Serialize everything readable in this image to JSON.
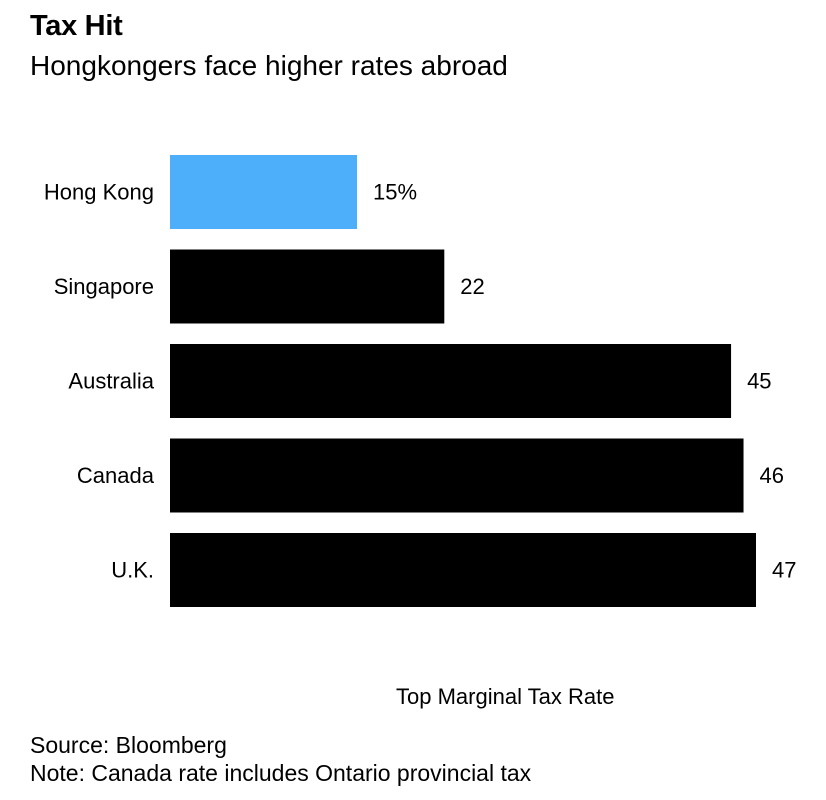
{
  "chart_data": {
    "type": "bar",
    "orientation": "horizontal",
    "title": "Tax Hit",
    "subtitle": "Hongkongers face higher rates abroad",
    "xlabel": "Top Marginal Tax Rate",
    "ylabel": "",
    "categories": [
      "Hong Kong",
      "Singapore",
      "Australia",
      "Canada",
      "U.K."
    ],
    "values": [
      15,
      22,
      45,
      46,
      47
    ],
    "data_labels": [
      "15%",
      "22",
      "45",
      "46",
      "47"
    ],
    "xlim": [
      0,
      47
    ],
    "grid": false,
    "legend": "none",
    "colors": {
      "highlight": "#4daefa",
      "default": "#000000"
    },
    "highlight_index": 0
  },
  "footer": {
    "source": "Source: Bloomberg",
    "note": "Note: Canada rate includes Ontario provincial tax"
  }
}
